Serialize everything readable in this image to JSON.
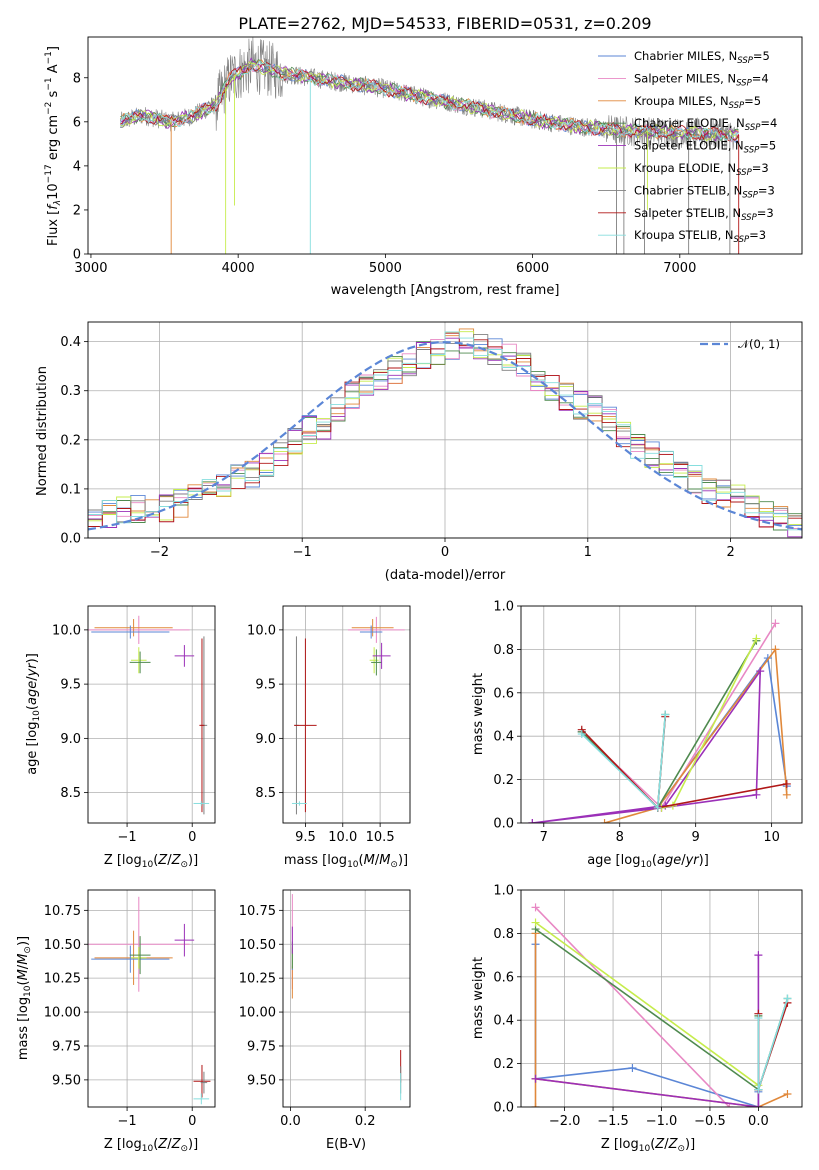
{
  "title": "PLATE=2762, MJD=54533, FIBERID=0531, z=0.209",
  "colors": {
    "blue": "#5b86d6",
    "pink": "#e888c4",
    "orange": "#e0883a",
    "green": "#4f8a4f",
    "purple": "#9b30b8",
    "yellowgreen": "#c6ec4c",
    "gray": "#808080",
    "darkred": "#b01717",
    "cyan": "#86dede",
    "normal": "#5b86d6"
  },
  "chart_data": [
    {
      "id": "spectrum",
      "type": "line",
      "title": "PLATE=2762, MJD=54533, FIBERID=0531, z=0.209",
      "xlabel": "wavelength [Angstrom, rest frame]",
      "ylabel": "Flux [f_λ 10^-17 erg cm^-2 s^-1 A^-1]",
      "xlim": [
        2980,
        7830
      ],
      "ylim": [
        0,
        9.85
      ],
      "xticks": [
        "3000",
        "4000",
        "5000",
        "6000",
        "7000"
      ],
      "yticks": [
        "0",
        "2",
        "4",
        "6",
        "8"
      ],
      "legend_position": "upper-right",
      "legend": [
        {
          "label": "Chabrier MILES, N",
          "sub": "SSP",
          "suffix": "=5",
          "color": "blue"
        },
        {
          "label": "Salpeter MILES, N",
          "sub": "SSP",
          "suffix": "=4",
          "color": "pink"
        },
        {
          "label": "Kroupa MILES, N",
          "sub": "SSP",
          "suffix": "=5",
          "color": "orange"
        },
        {
          "label": "Chabrier ELODIE, N",
          "sub": "SSP",
          "suffix": "=4",
          "color": "green"
        },
        {
          "label": "Salpeter ELODIE, N",
          "sub": "SSP",
          "suffix": "=5",
          "color": "purple"
        },
        {
          "label": "Kroupa ELODIE, N",
          "sub": "SSP",
          "suffix": "=3",
          "color": "yellowgreen"
        },
        {
          "label": "Chabrier STELIB, N",
          "sub": "SSP",
          "suffix": "=3",
          "color": "gray"
        },
        {
          "label": "Salpeter STELIB, N",
          "sub": "SSP",
          "suffix": "=3",
          "color": "darkred"
        },
        {
          "label": "Kroupa STELIB, N",
          "sub": "SSP",
          "suffix": "=3",
          "color": "cyan"
        }
      ],
      "continuum_model": [
        [
          3200,
          6.0
        ],
        [
          3350,
          6.3
        ],
        [
          3550,
          6.0
        ],
        [
          3700,
          6.3
        ],
        [
          3850,
          6.8
        ],
        [
          3950,
          8.0
        ],
        [
          4100,
          8.6
        ],
        [
          4300,
          8.2
        ],
        [
          4500,
          8.0
        ],
        [
          4800,
          7.7
        ],
        [
          5000,
          7.5
        ],
        [
          5200,
          7.2
        ],
        [
          5500,
          6.8
        ],
        [
          5800,
          6.4
        ],
        [
          6000,
          6.1
        ],
        [
          6300,
          5.8
        ],
        [
          6600,
          5.6
        ],
        [
          7000,
          5.5
        ],
        [
          7400,
          5.4
        ]
      ],
      "observed_spectrum": {
        "x_range": [
          3200,
          7400
        ],
        "color": "gray",
        "noise_amplitude": [
          0.3,
          1.2
        ]
      },
      "spikes": [
        {
          "x": 3545,
          "y": 0,
          "color": "orange"
        },
        {
          "x": 3915,
          "y": 0,
          "color": "yellowgreen"
        },
        {
          "x": 3975,
          "y": 2.2,
          "color": "yellowgreen"
        },
        {
          "x": 4490,
          "y": 0,
          "color": "cyan"
        },
        {
          "x": 6570,
          "y": 0,
          "color": "gray"
        },
        {
          "x": 6620,
          "y": 0,
          "color": "gray"
        },
        {
          "x": 6760,
          "y": 0,
          "color": "gray"
        },
        {
          "x": 6780,
          "y": 2.0,
          "color": "yellowgreen"
        },
        {
          "x": 7060,
          "y": 0,
          "color": "gray"
        },
        {
          "x": 7340,
          "y": 0,
          "color": "gray"
        },
        {
          "x": 7400,
          "y": 0,
          "color": "darkred"
        }
      ]
    },
    {
      "id": "residuals",
      "type": "histogram",
      "xlabel": "(data-model)/error",
      "ylabel": "Normed distribution",
      "xlim": [
        -2.5,
        2.5
      ],
      "ylim": [
        0,
        0.44
      ],
      "xticks": [
        "−2",
        "−1",
        "0",
        "1",
        "2"
      ],
      "yticks": [
        "0.0",
        "0.1",
        "0.2",
        "0.3",
        "0.4"
      ],
      "grid": true,
      "legend": [
        {
          "label": "𝒩(0, 1)",
          "color": "normal",
          "style": "dashed"
        }
      ],
      "bin_edges_range": [
        -2.5,
        2.5
      ],
      "n_bins": 50,
      "envelope": [
        0.05,
        0.05,
        0.06,
        0.06,
        0.05,
        0.06,
        0.07,
        0.09,
        0.1,
        0.11,
        0.12,
        0.13,
        0.15,
        0.17,
        0.2,
        0.22,
        0.23,
        0.26,
        0.29,
        0.31,
        0.32,
        0.34,
        0.36,
        0.37,
        0.38,
        0.39,
        0.4,
        0.39,
        0.38,
        0.37,
        0.35,
        0.33,
        0.31,
        0.29,
        0.27,
        0.26,
        0.24,
        0.21,
        0.19,
        0.17,
        0.15,
        0.14,
        0.12,
        0.1,
        0.09,
        0.08,
        0.06,
        0.05,
        0.04,
        0.03
      ],
      "series_colors": [
        "blue",
        "pink",
        "orange",
        "green",
        "purple",
        "yellowgreen",
        "gray",
        "darkred",
        "cyan"
      ]
    },
    {
      "id": "age_vs_Z",
      "type": "errorbar",
      "xlabel": "Z [log10(Z/Z⊙)]",
      "ylabel": "age  [log10(age/yr)]",
      "xlim": [
        -1.6,
        0.35
      ],
      "ylim": [
        8.22,
        10.22
      ],
      "xticks": [
        "−1",
        "0"
      ],
      "yticks": [
        "8.5",
        "9.0",
        "9.5",
        "10.0"
      ],
      "grid": true,
      "points": [
        {
          "x": -0.82,
          "y": 10.0,
          "xerr": 0.78,
          "yerr": 0.13,
          "color": "pink"
        },
        {
          "x": -0.9,
          "y": 10.02,
          "xerr": 0.6,
          "yerr": 0.08,
          "color": "orange"
        },
        {
          "x": -0.95,
          "y": 9.98,
          "xerr": 0.6,
          "yerr": 0.06,
          "color": "blue"
        },
        {
          "x": -0.82,
          "y": 9.72,
          "xerr": 0.12,
          "yerr": 0.12,
          "color": "yellowgreen"
        },
        {
          "x": -0.8,
          "y": 9.7,
          "xerr": 0.16,
          "yerr": 0.1,
          "color": "green"
        },
        {
          "x": -0.12,
          "y": 9.76,
          "xerr": 0.15,
          "yerr": 0.1,
          "color": "purple"
        },
        {
          "x": 0.18,
          "y": 9.12,
          "xerr": 0.05,
          "yerr": 0.82,
          "color": "gray"
        },
        {
          "x": 0.15,
          "y": 9.12,
          "xerr": 0.04,
          "yerr": 0.8,
          "color": "darkred"
        },
        {
          "x": 0.14,
          "y": 8.4,
          "xerr": 0.12,
          "yerr": 0.02,
          "color": "cyan"
        }
      ]
    },
    {
      "id": "age_vs_mass",
      "type": "errorbar",
      "xlabel": "mass [log10(M/M⊙)]",
      "ylabel": "",
      "xlim": [
        9.2,
        10.9
      ],
      "ylim": [
        8.22,
        10.22
      ],
      "xticks": [
        "9.5",
        "10.0",
        "10.5"
      ],
      "yticks": [
        "8.5",
        "9.0",
        "9.5",
        "10.0"
      ],
      "grid": true,
      "points": [
        {
          "x": 10.45,
          "y": 10.0,
          "xerr": 0.38,
          "yerr": 0.12,
          "color": "pink"
        },
        {
          "x": 10.4,
          "y": 10.02,
          "xerr": 0.28,
          "yerr": 0.08,
          "color": "orange"
        },
        {
          "x": 10.38,
          "y": 9.98,
          "xerr": 0.15,
          "yerr": 0.06,
          "color": "blue"
        },
        {
          "x": 10.42,
          "y": 9.72,
          "xerr": 0.06,
          "yerr": 0.12,
          "color": "yellowgreen"
        },
        {
          "x": 10.45,
          "y": 9.7,
          "xerr": 0.07,
          "yerr": 0.12,
          "color": "green"
        },
        {
          "x": 10.52,
          "y": 9.76,
          "xerr": 0.12,
          "yerr": 0.12,
          "color": "purple"
        },
        {
          "x": 9.38,
          "y": 9.12,
          "xerr": 0.03,
          "yerr": 0.82,
          "color": "gray"
        },
        {
          "x": 9.5,
          "y": 9.12,
          "xerr": 0.15,
          "yerr": 0.8,
          "color": "darkred"
        },
        {
          "x": 9.42,
          "y": 8.4,
          "xerr": 0.1,
          "yerr": 0.02,
          "color": "cyan"
        }
      ]
    },
    {
      "id": "massweight_vs_age",
      "type": "line",
      "xlabel": "age  [log10(age/yr)]",
      "ylabel": "mass weight",
      "xlim": [
        6.7,
        10.4
      ],
      "ylim": [
        0,
        1
      ],
      "xticks": [
        "7",
        "8",
        "9",
        "10"
      ],
      "yticks": [
        "0.0",
        "0.2",
        "0.4",
        "0.6",
        "0.8",
        "1.0"
      ],
      "grid": true,
      "series": [
        {
          "color": "blue",
          "points": [
            [
              7.5,
              0.42
            ],
            [
              8.5,
              0.07
            ],
            [
              9.95,
              0.76
            ],
            [
              10.2,
              0.17
            ]
          ]
        },
        {
          "color": "pink",
          "points": [
            [
              7.5,
              0.42
            ],
            [
              8.55,
              0.07
            ],
            [
              10.05,
              0.92
            ]
          ]
        },
        {
          "color": "orange",
          "points": [
            [
              7.8,
              0.0
            ],
            [
              8.5,
              0.07
            ],
            [
              10.05,
              0.8
            ],
            [
              10.2,
              0.13
            ]
          ]
        },
        {
          "color": "green",
          "points": [
            [
              7.5,
              0.42
            ],
            [
              8.5,
              0.07
            ],
            [
              8.6,
              0.5
            ],
            [
              8.5,
              0.07
            ],
            [
              9.8,
              0.84
            ]
          ]
        },
        {
          "color": "purple",
          "points": [
            [
              6.85,
              0.0
            ],
            [
              8.55,
              0.07
            ],
            [
              9.8,
              0.13
            ],
            [
              9.85,
              0.7
            ],
            [
              8.6,
              0.08
            ],
            [
              6.85,
              0.0
            ]
          ]
        },
        {
          "color": "yellowgreen",
          "points": [
            [
              8.55,
              0.07
            ],
            [
              8.7,
              0.08
            ],
            [
              9.8,
              0.85
            ]
          ]
        },
        {
          "color": "darkred",
          "points": [
            [
              7.5,
              0.43
            ],
            [
              8.5,
              0.07
            ],
            [
              8.6,
              0.49
            ],
            [
              8.5,
              0.07
            ],
            [
              10.2,
              0.18
            ]
          ]
        },
        {
          "color": "cyan",
          "points": [
            [
              7.5,
              0.41
            ],
            [
              8.5,
              0.07
            ],
            [
              8.6,
              0.5
            ]
          ]
        }
      ]
    },
    {
      "id": "mass_vs_Z",
      "type": "errorbar",
      "xlabel": "Z [log10(Z/Z⊙)]",
      "ylabel": "mass [log10(M/M⊙)]",
      "xlim": [
        -1.6,
        0.35
      ],
      "ylim": [
        9.3,
        10.9
      ],
      "xticks": [
        "−1",
        "0"
      ],
      "yticks": [
        "9.50",
        "9.75",
        "10.00",
        "10.25",
        "10.50",
        "10.75"
      ],
      "grid": true,
      "points": [
        {
          "x": -0.82,
          "y": 10.5,
          "xerr": 0.78,
          "yerr": 0.35,
          "color": "pink"
        },
        {
          "x": -0.9,
          "y": 10.4,
          "xerr": 0.6,
          "yerr": 0.2,
          "color": "orange"
        },
        {
          "x": -0.95,
          "y": 10.39,
          "xerr": 0.6,
          "yerr": 0.1,
          "color": "blue"
        },
        {
          "x": -0.82,
          "y": 10.4,
          "xerr": 0.12,
          "yerr": 0.08,
          "color": "yellowgreen"
        },
        {
          "x": -0.8,
          "y": 10.42,
          "xerr": 0.16,
          "yerr": 0.14,
          "color": "green"
        },
        {
          "x": -0.12,
          "y": 10.53,
          "xerr": 0.15,
          "yerr": 0.12,
          "color": "purple"
        },
        {
          "x": 0.15,
          "y": 9.49,
          "xerr": 0.13,
          "yerr": 0.12,
          "color": "darkred"
        },
        {
          "x": 0.18,
          "y": 9.48,
          "xerr": 0.05,
          "yerr": 0.08,
          "color": "gray"
        },
        {
          "x": 0.14,
          "y": 9.36,
          "xerr": 0.12,
          "yerr": 0.04,
          "color": "cyan"
        }
      ]
    },
    {
      "id": "mass_vs_EBV",
      "type": "errorbar",
      "xlabel": "E(B-V)",
      "ylabel": "",
      "xlim": [
        -0.02,
        0.32
      ],
      "ylim": [
        9.3,
        10.9
      ],
      "xticks": [
        "0.0",
        "0.2"
      ],
      "yticks": [
        "9.50",
        "9.75",
        "10.00",
        "10.25",
        "10.50",
        "10.75"
      ],
      "grid": true,
      "points": [
        {
          "x": 0.005,
          "y": 10.52,
          "xerr": 0.0,
          "yerr": 0.35,
          "color": "pink"
        },
        {
          "x": 0.005,
          "y": 10.22,
          "xerr": 0.0,
          "yerr": 0.12,
          "color": "orange"
        },
        {
          "x": 0.005,
          "y": 10.39,
          "xerr": 0.0,
          "yerr": 0.08,
          "color": "blue"
        },
        {
          "x": 0.005,
          "y": 10.4,
          "xerr": 0.0,
          "yerr": 0.08,
          "color": "yellowgreen"
        },
        {
          "x": 0.005,
          "y": 10.42,
          "xerr": 0.0,
          "yerr": 0.1,
          "color": "green"
        },
        {
          "x": 0.005,
          "y": 10.53,
          "xerr": 0.0,
          "yerr": 0.1,
          "color": "purple"
        },
        {
          "x": 0.295,
          "y": 9.6,
          "xerr": 0.0,
          "yerr": 0.12,
          "color": "darkred"
        },
        {
          "x": 0.295,
          "y": 9.5,
          "xerr": 0.0,
          "yerr": 0.1,
          "color": "gray"
        },
        {
          "x": 0.295,
          "y": 9.45,
          "xerr": 0.0,
          "yerr": 0.1,
          "color": "cyan"
        }
      ]
    },
    {
      "id": "massweight_vs_Z",
      "type": "line",
      "xlabel": "Z [log10(Z/Z⊙)]",
      "ylabel": "mass weight",
      "xlim": [
        -2.45,
        0.45
      ],
      "ylim": [
        0,
        1
      ],
      "xticks": [
        "−2.0",
        "−1.5",
        "−1.0",
        "−0.5",
        "0.0"
      ],
      "yticks": [
        "0.0",
        "0.2",
        "0.4",
        "0.6",
        "0.8",
        "1.0"
      ],
      "grid": true,
      "series": [
        {
          "color": "blue",
          "points": [
            [
              -2.3,
              0.75
            ],
            [
              -2.3,
              0.13
            ],
            [
              -1.3,
              0.18
            ],
            [
              0.0,
              0.0
            ],
            [
              0.0,
              0.07
            ]
          ]
        },
        {
          "color": "pink",
          "points": [
            [
              -2.3,
              0.92
            ],
            [
              -0.3,
              0.0
            ]
          ]
        },
        {
          "color": "orange",
          "points": [
            [
              -2.3,
              0.8
            ],
            [
              -2.3,
              0.0
            ],
            [
              -2.3,
              0.13
            ],
            [
              0.0,
              0.0
            ],
            [
              0.3,
              0.06
            ]
          ]
        },
        {
          "color": "green",
          "points": [
            [
              -2.3,
              0.82
            ],
            [
              0.0,
              0.08
            ],
            [
              0.0,
              0.42
            ],
            [
              0.0,
              0.08
            ],
            [
              0.3,
              0.5
            ]
          ]
        },
        {
          "color": "purple",
          "points": [
            [
              -2.3,
              0.13
            ],
            [
              0.0,
              0.0
            ],
            [
              0.0,
              0.7
            ],
            [
              0.0,
              0.0
            ]
          ]
        },
        {
          "color": "yellowgreen",
          "points": [
            [
              -2.3,
              0.85
            ],
            [
              0.0,
              0.1
            ]
          ]
        },
        {
          "color": "darkred",
          "points": [
            [
              0.0,
              0.43
            ],
            [
              0.0,
              0.08
            ],
            [
              0.3,
              0.48
            ]
          ]
        },
        {
          "color": "cyan",
          "points": [
            [
              0.0,
              0.41
            ],
            [
              0.0,
              0.08
            ],
            [
              0.3,
              0.5
            ]
          ]
        }
      ]
    }
  ]
}
